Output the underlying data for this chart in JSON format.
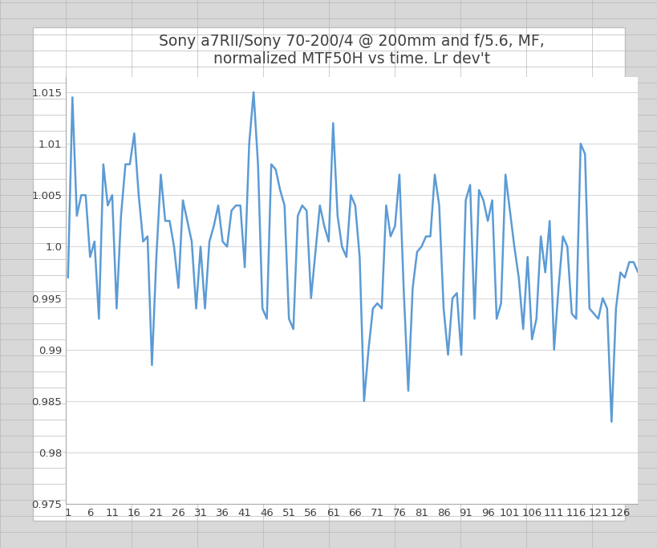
{
  "title": "Sony a7RII/Sony 70-200/4 @ 200mm and f/5.6, MF,\nnormalized MTF50H vs time. Lr dev't",
  "line_color": "#5B9BD5",
  "chart_bg_color": "#FFFFFF",
  "outer_bg_color": "#E8E8E8",
  "grid_color": "#D9D9D9",
  "ylim": [
    0.975,
    1.0165
  ],
  "yticks": [
    0.975,
    0.98,
    0.985,
    0.99,
    0.995,
    1.0,
    1.005,
    1.01,
    1.015
  ],
  "xticks": [
    1,
    6,
    11,
    16,
    21,
    26,
    31,
    36,
    41,
    46,
    51,
    56,
    61,
    66,
    71,
    76,
    81,
    86,
    91,
    96,
    101,
    106,
    111,
    116,
    121,
    126
  ],
  "xlim": [
    0.5,
    130
  ],
  "values": [
    0.997,
    1.0145,
    1.003,
    1.005,
    1.005,
    0.999,
    1.0005,
    0.993,
    1.008,
    1.004,
    1.005,
    0.994,
    1.003,
    1.008,
    1.008,
    1.011,
    1.005,
    1.0005,
    1.001,
    0.9885,
    0.999,
    1.007,
    1.0025,
    1.0025,
    1.0,
    0.996,
    1.0045,
    1.0025,
    1.0005,
    0.994,
    1.0,
    0.994,
    1.0005,
    1.002,
    1.004,
    1.0005,
    1.0,
    1.0035,
    1.004,
    1.004,
    0.998,
    1.01,
    1.015,
    1.008,
    0.994,
    0.993,
    1.008,
    1.0075,
    1.0055,
    1.004,
    0.993,
    0.992,
    1.003,
    1.004,
    1.0035,
    0.995,
    0.9995,
    1.004,
    1.002,
    1.0005,
    1.012,
    1.003,
    1.0,
    0.999,
    1.005,
    1.004,
    0.999,
    0.985,
    0.99,
    0.994,
    0.9945,
    0.994,
    1.004,
    1.001,
    1.002,
    1.007,
    0.9955,
    0.986,
    0.996,
    0.9995,
    1.0,
    1.001,
    1.001,
    1.007,
    1.004,
    0.994,
    0.9895,
    0.995,
    0.9955,
    0.9895,
    1.0045,
    1.006,
    0.993,
    1.0055,
    1.0045,
    1.0025,
    1.0045,
    0.993,
    0.9945,
    1.007,
    1.0035,
    1.0,
    0.997,
    0.992,
    0.999,
    0.991,
    0.993,
    1.001,
    0.9975,
    1.0025,
    0.99,
    0.996,
    1.001,
    1.0,
    0.9935,
    0.993,
    1.01,
    1.009,
    0.994,
    0.9935,
    0.993,
    0.995,
    0.994,
    0.983,
    0.994,
    0.9975,
    0.997,
    0.9985,
    0.9985,
    0.9975
  ]
}
